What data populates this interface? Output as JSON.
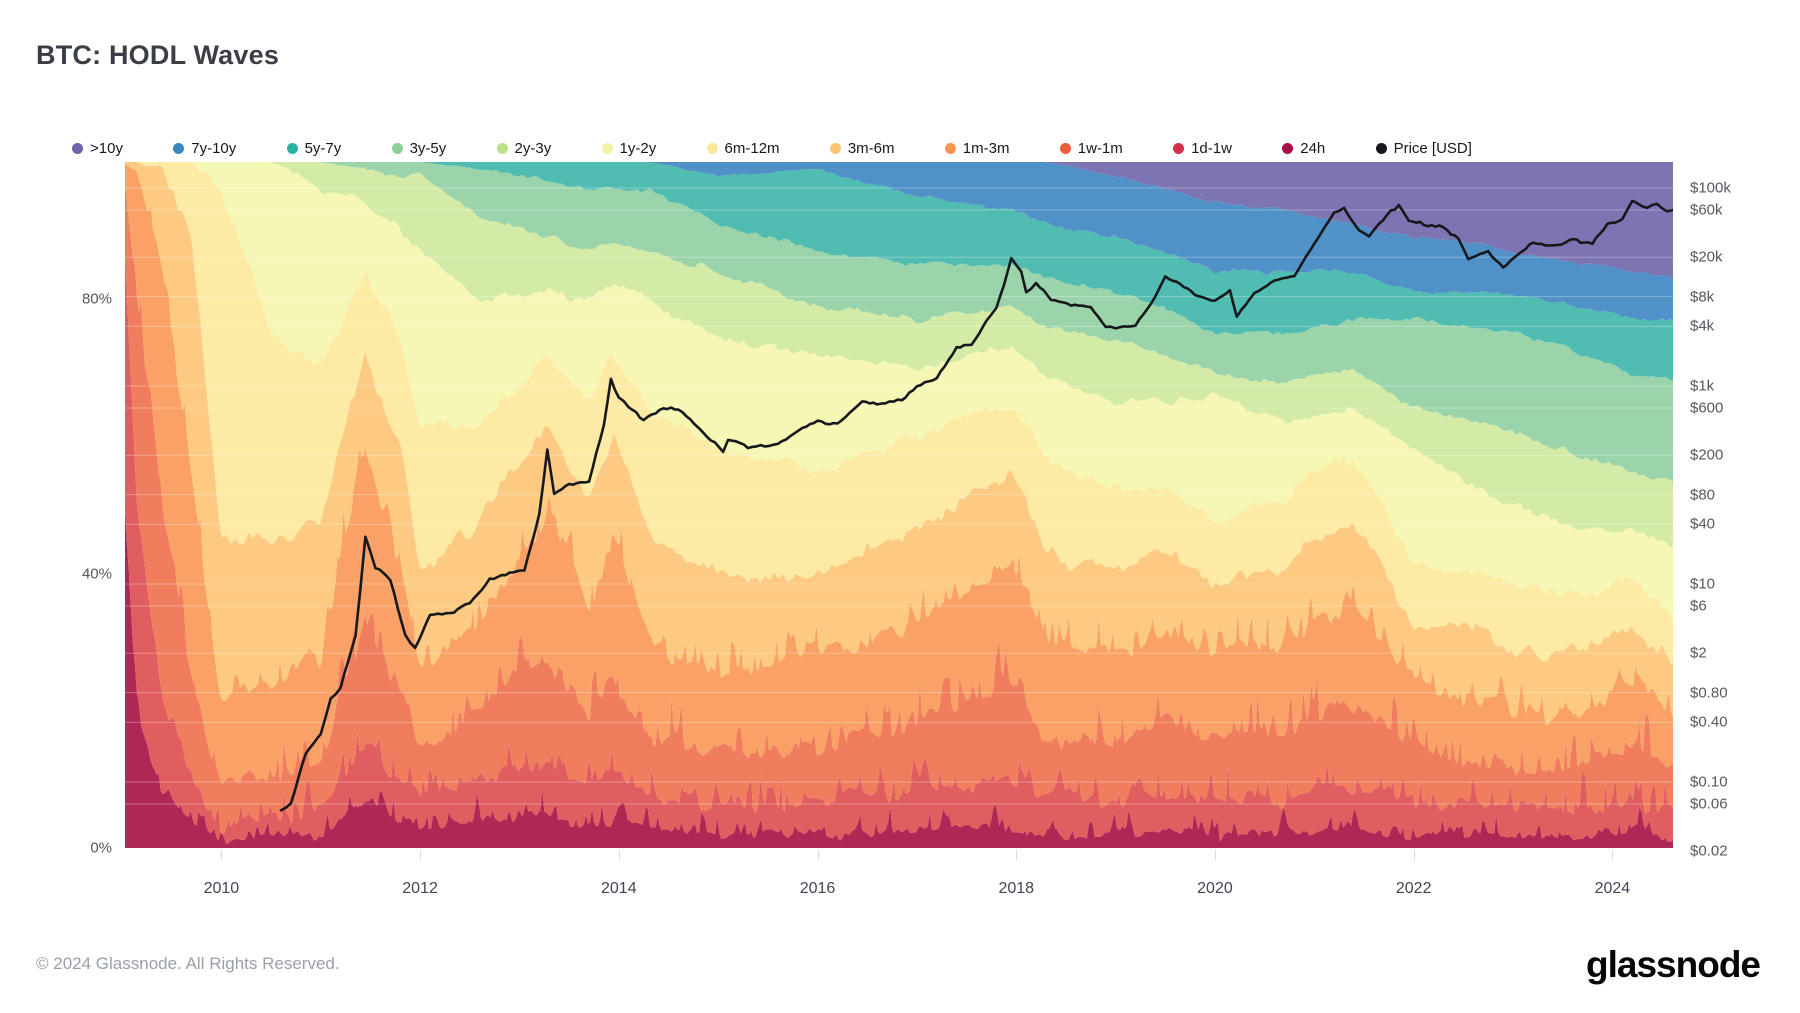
{
  "title": "BTC: HODL Waves",
  "legend": {
    "items": [
      {
        "label": ">10y",
        "color": "#6f63a8"
      },
      {
        "label": "7y-10y",
        "color": "#3a87c0"
      },
      {
        "label": "5y-7y",
        "color": "#2bb2a5"
      },
      {
        "label": "3y-5y",
        "color": "#8fcd9d"
      },
      {
        "label": "2y-3y",
        "color": "#bce087"
      },
      {
        "label": "1y-2y",
        "color": "#f2f3a4"
      },
      {
        "label": "6m-12m",
        "color": "#fce897"
      },
      {
        "label": "3m-6m",
        "color": "#fbc672"
      },
      {
        "label": "1m-3m",
        "color": "#f89552"
      },
      {
        "label": "1w-1m",
        "color": "#eb5e3c"
      },
      {
        "label": "1d-1w",
        "color": "#d43049"
      },
      {
        "label": "24h",
        "color": "#a50f44"
      },
      {
        "label": "Price [USD]",
        "color": "#17181c"
      }
    ]
  },
  "axes": {
    "y_left": {
      "unit": "%",
      "ticks": [
        {
          "label": "0%",
          "value": 0
        },
        {
          "label": "40%",
          "value": 40
        },
        {
          "label": "80%",
          "value": 80
        }
      ]
    },
    "y_right": {
      "unit": "USD",
      "scale": "log",
      "ticks": [
        {
          "label": "$100k",
          "value": 100000
        },
        {
          "label": "$60k",
          "value": 60000
        },
        {
          "label": "$20k",
          "value": 20000
        },
        {
          "label": "$8k",
          "value": 8000
        },
        {
          "label": "$4k",
          "value": 4000
        },
        {
          "label": "$1k",
          "value": 1000
        },
        {
          "label": "$600",
          "value": 600
        },
        {
          "label": "$200",
          "value": 200
        },
        {
          "label": "$80",
          "value": 80
        },
        {
          "label": "$40",
          "value": 40
        },
        {
          "label": "$10",
          "value": 10
        },
        {
          "label": "$6",
          "value": 6
        },
        {
          "label": "$2",
          "value": 2
        },
        {
          "label": "$0.80",
          "value": 0.8
        },
        {
          "label": "$0.40",
          "value": 0.4
        },
        {
          "label": "$0.10",
          "value": 0.1
        },
        {
          "label": "$0.06",
          "value": 0.06
        },
        {
          "label": "$0.02",
          "value": 0.02
        }
      ]
    },
    "x": {
      "ticks": [
        2010,
        2012,
        2014,
        2016,
        2018,
        2020,
        2022,
        2024
      ]
    }
  },
  "chart_data": {
    "type": "area",
    "title": "BTC: HODL Waves",
    "stacking": "percent100",
    "x_range": [
      2009.03,
      2024.61
    ],
    "ylim_percent": [
      0,
      100
    ],
    "grid": "horizontal-on-price-ticks",
    "legend_position": "top",
    "bands_bottom_to_top": [
      "24h",
      "1d-1w",
      "1w-1m",
      "1m-3m",
      "3m-6m",
      "6m-12m",
      "1y-2y",
      "2y-3y",
      "3y-5y",
      "5y-7y",
      "7y-10y",
      ">10y"
    ],
    "band_colors": [
      "#a81647",
      "#dd4f53",
      "#ef7350",
      "#f9995a",
      "#fcc577",
      "#fde89c",
      "#f5f6ae",
      "#cfe99e",
      "#93d0a4",
      "#41b6ab",
      "#4189c2",
      "#7268ab"
    ],
    "samples_note": "cum_tops = cumulative % from bottom, tops of first 11 bands; >10y fills to 100",
    "samples": [
      {
        "year": 2009.03,
        "cum_tops": [
          50,
          85,
          97,
          100,
          100,
          100,
          100,
          100,
          100,
          100,
          100
        ]
      },
      {
        "year": 2009.15,
        "cum_tops": [
          20,
          50,
          80,
          98,
          100,
          100,
          100,
          100,
          100,
          100,
          100
        ]
      },
      {
        "year": 2009.4,
        "cum_tops": [
          8,
          22,
          50,
          85,
          99,
          100,
          100,
          100,
          100,
          100,
          100
        ]
      },
      {
        "year": 2009.7,
        "cum_tops": [
          4,
          10,
          25,
          55,
          90,
          100,
          100,
          100,
          100,
          100,
          100
        ]
      },
      {
        "year": 2010.0,
        "cum_tops": [
          1,
          3,
          8,
          22,
          45,
          96,
          100,
          100,
          100,
          100,
          100
        ]
      },
      {
        "year": 2010.5,
        "cum_tops": [
          2,
          5,
          11,
          25,
          45,
          75,
          100,
          100,
          100,
          100,
          100
        ]
      },
      {
        "year": 2011.0,
        "cum_tops": [
          2,
          5,
          12,
          28,
          48,
          70,
          96,
          100,
          100,
          100,
          100
        ]
      },
      {
        "year": 2011.45,
        "cum_tops": [
          7,
          16,
          34,
          58,
          72,
          84,
          94,
          99,
          100,
          100,
          100
        ]
      },
      {
        "year": 2011.8,
        "cum_tops": [
          4,
          10,
          22,
          40,
          58,
          75,
          90,
          98,
          100,
          100,
          100
        ]
      },
      {
        "year": 2012.0,
        "cum_tops": [
          3,
          8,
          15,
          26,
          40,
          62,
          87,
          98,
          100,
          100,
          100
        ]
      },
      {
        "year": 2012.6,
        "cum_tops": [
          4,
          10,
          20,
          34,
          48,
          62,
          80,
          92,
          99,
          100,
          100
        ]
      },
      {
        "year": 2013.3,
        "cum_tops": [
          5,
          13,
          28,
          48,
          62,
          72,
          81,
          89,
          97,
          100,
          100
        ]
      },
      {
        "year": 2013.7,
        "cum_tops": [
          3,
          8,
          18,
          35,
          50,
          65,
          80,
          87,
          96,
          100,
          100
        ]
      },
      {
        "year": 2013.95,
        "cum_tops": [
          4,
          11,
          25,
          45,
          60,
          72,
          82,
          88,
          96,
          100,
          100
        ]
      },
      {
        "year": 2014.3,
        "cum_tops": [
          2.5,
          7,
          16,
          30,
          46,
          64,
          80,
          87,
          96,
          100,
          100
        ]
      },
      {
        "year": 2015.0,
        "cum_tops": [
          2,
          6,
          14,
          26,
          40,
          58,
          74,
          84,
          91,
          98,
          100
        ]
      },
      {
        "year": 2016.0,
        "cum_tops": [
          2,
          7,
          15,
          28,
          40,
          55,
          72,
          79,
          87,
          99,
          100
        ]
      },
      {
        "year": 2017.0,
        "cum_tops": [
          2.5,
          8,
          18,
          32,
          46,
          60,
          70,
          77,
          85,
          95,
          100
        ]
      },
      {
        "year": 2017.95,
        "cum_tops": [
          3,
          10,
          24,
          42,
          55,
          65,
          73,
          79,
          85,
          93,
          100
        ]
      },
      {
        "year": 2018.3,
        "cum_tops": [
          2,
          7,
          16,
          30,
          43,
          57,
          69,
          76,
          83,
          91,
          100
        ]
      },
      {
        "year": 2019.0,
        "cum_tops": [
          2,
          7,
          16,
          28,
          40,
          52,
          65,
          74,
          81,
          89,
          98
        ]
      },
      {
        "year": 2019.5,
        "cum_tops": [
          2.5,
          8,
          18,
          31,
          43,
          53,
          65,
          72,
          79,
          87,
          96
        ]
      },
      {
        "year": 2020.0,
        "cum_tops": [
          2,
          7,
          17,
          28,
          38,
          48,
          66,
          69,
          75,
          84,
          94
        ]
      },
      {
        "year": 2020.7,
        "cum_tops": [
          2,
          7,
          17,
          30,
          41,
          51,
          62,
          68,
          75,
          84,
          93
        ]
      },
      {
        "year": 2021.0,
        "cum_tops": [
          2.5,
          8,
          19,
          33,
          45,
          55,
          63,
          69,
          76,
          84,
          92
        ]
      },
      {
        "year": 2021.4,
        "cum_tops": [
          3,
          9,
          21,
          35,
          47,
          57,
          64,
          70,
          77,
          84,
          91
        ]
      },
      {
        "year": 2022.0,
        "cum_tops": [
          2,
          7,
          15,
          24,
          33,
          42,
          58,
          64,
          77,
          81,
          89
        ]
      },
      {
        "year": 2022.7,
        "cum_tops": [
          2,
          6,
          13,
          22,
          31,
          40,
          52,
          62,
          76,
          81,
          88
        ]
      },
      {
        "year": 2023.3,
        "cum_tops": [
          1.5,
          5,
          11,
          19,
          28,
          37,
          48,
          59,
          74,
          80,
          86
        ]
      },
      {
        "year": 2023.9,
        "cum_tops": [
          2,
          6,
          13,
          21,
          30,
          38,
          46,
          56,
          71,
          78,
          85
        ]
      },
      {
        "year": 2024.2,
        "cum_tops": [
          2.5,
          7,
          15,
          24,
          32,
          40,
          47,
          55,
          69,
          77,
          84
        ]
      },
      {
        "year": 2024.61,
        "cum_tops": [
          1,
          5,
          12,
          20,
          27,
          34,
          44,
          53,
          68,
          77,
          83
        ]
      }
    ],
    "price_series": {
      "name": "Price [USD]",
      "color": "#17181c",
      "scale": "log",
      "points": [
        [
          2010.6,
          0.05
        ],
        [
          2010.7,
          0.06
        ],
        [
          2010.85,
          0.2
        ],
        [
          2011.0,
          0.3
        ],
        [
          2011.1,
          0.7
        ],
        [
          2011.2,
          0.9
        ],
        [
          2011.35,
          3
        ],
        [
          2011.45,
          30
        ],
        [
          2011.55,
          15
        ],
        [
          2011.7,
          11
        ],
        [
          2011.85,
          3
        ],
        [
          2011.95,
          2.2
        ],
        [
          2012.1,
          5
        ],
        [
          2012.3,
          5
        ],
        [
          2012.5,
          6.5
        ],
        [
          2012.7,
          11
        ],
        [
          2012.9,
          12.5
        ],
        [
          2013.05,
          14
        ],
        [
          2013.2,
          50
        ],
        [
          2013.28,
          230
        ],
        [
          2013.35,
          80
        ],
        [
          2013.5,
          100
        ],
        [
          2013.7,
          110
        ],
        [
          2013.85,
          400
        ],
        [
          2013.92,
          1150
        ],
        [
          2014.0,
          770
        ],
        [
          2014.1,
          620
        ],
        [
          2014.25,
          450
        ],
        [
          2014.45,
          600
        ],
        [
          2014.6,
          590
        ],
        [
          2014.8,
          380
        ],
        [
          2015.05,
          220
        ],
        [
          2015.1,
          290
        ],
        [
          2015.3,
          240
        ],
        [
          2015.6,
          260
        ],
        [
          2015.85,
          380
        ],
        [
          2016.0,
          430
        ],
        [
          2016.2,
          420
        ],
        [
          2016.45,
          700
        ],
        [
          2016.6,
          650
        ],
        [
          2016.85,
          730
        ],
        [
          2017.0,
          1000
        ],
        [
          2017.2,
          1200
        ],
        [
          2017.4,
          2500
        ],
        [
          2017.55,
          2600
        ],
        [
          2017.7,
          4400
        ],
        [
          2017.8,
          6000
        ],
        [
          2017.95,
          19000
        ],
        [
          2018.05,
          14000
        ],
        [
          2018.1,
          8500
        ],
        [
          2018.2,
          11000
        ],
        [
          2018.35,
          7500
        ],
        [
          2018.55,
          6500
        ],
        [
          2018.75,
          6400
        ],
        [
          2018.9,
          4000
        ],
        [
          2019.0,
          3800
        ],
        [
          2019.2,
          4000
        ],
        [
          2019.4,
          8000
        ],
        [
          2019.5,
          12500
        ],
        [
          2019.65,
          10500
        ],
        [
          2019.8,
          8500
        ],
        [
          2020.0,
          7200
        ],
        [
          2020.15,
          9000
        ],
        [
          2020.22,
          5000
        ],
        [
          2020.4,
          9000
        ],
        [
          2020.6,
          11500
        ],
        [
          2020.8,
          13000
        ],
        [
          2020.95,
          23000
        ],
        [
          2021.05,
          33000
        ],
        [
          2021.1,
          40000
        ],
        [
          2021.2,
          57000
        ],
        [
          2021.3,
          63000
        ],
        [
          2021.45,
          37000
        ],
        [
          2021.55,
          33000
        ],
        [
          2021.65,
          45000
        ],
        [
          2021.85,
          67000
        ],
        [
          2021.95,
          47000
        ],
        [
          2022.1,
          43000
        ],
        [
          2022.3,
          40000
        ],
        [
          2022.45,
          30000
        ],
        [
          2022.55,
          19000
        ],
        [
          2022.75,
          23000
        ],
        [
          2022.9,
          16000
        ],
        [
          2023.05,
          21000
        ],
        [
          2023.2,
          28000
        ],
        [
          2023.45,
          26000
        ],
        [
          2023.6,
          30000
        ],
        [
          2023.8,
          27000
        ],
        [
          2023.95,
          43000
        ],
        [
          2024.1,
          48000
        ],
        [
          2024.2,
          73000
        ],
        [
          2024.35,
          61000
        ],
        [
          2024.45,
          68000
        ],
        [
          2024.55,
          58000
        ],
        [
          2024.61,
          60000
        ]
      ]
    }
  },
  "footer": {
    "copyright": "© 2024 Glassnode. All Rights Reserved.",
    "brand": "glassnode"
  }
}
